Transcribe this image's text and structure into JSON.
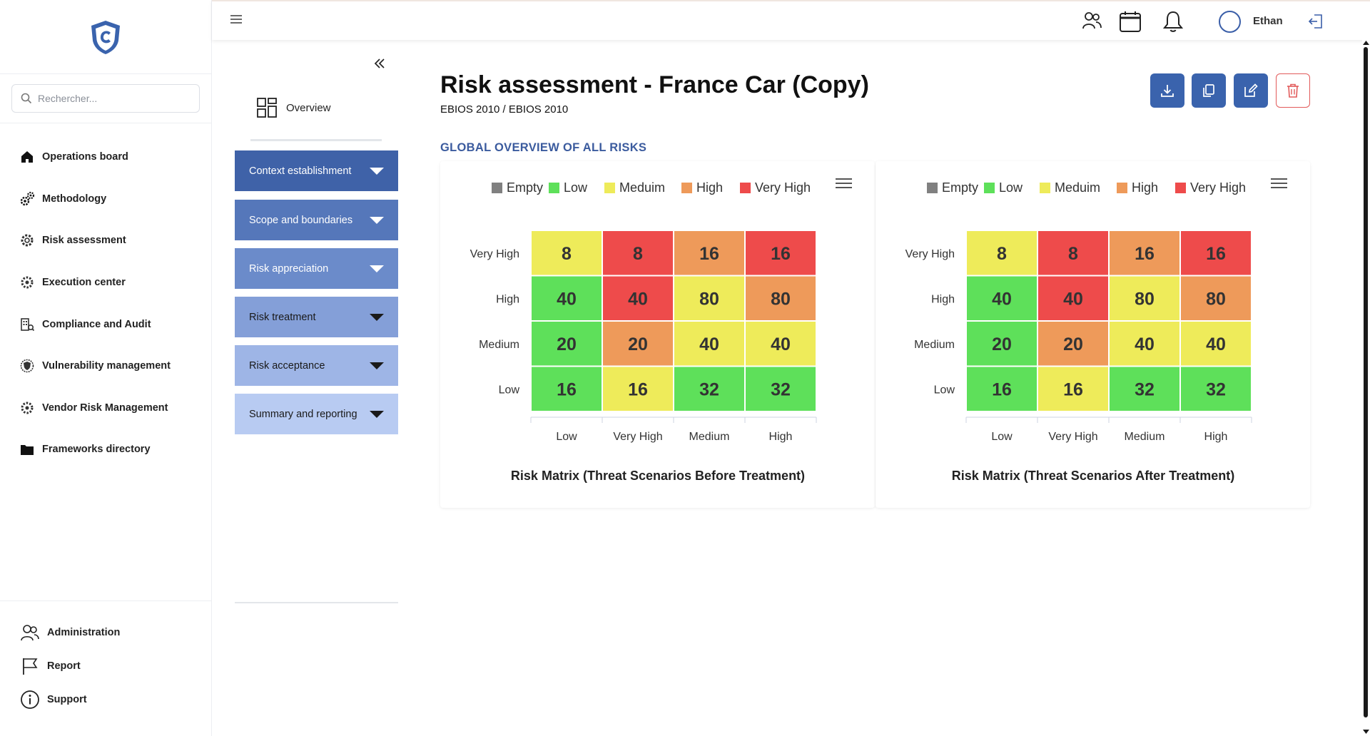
{
  "sidebar": {
    "search_placeholder": "Rechercher...",
    "items": [
      {
        "label": "Operations board",
        "icon": "home-icon"
      },
      {
        "label": "Methodology",
        "icon": "gears-icon"
      },
      {
        "label": "Risk assessment",
        "icon": "gear-icon"
      },
      {
        "label": "Execution center",
        "icon": "cog-icon"
      },
      {
        "label": "Compliance and Audit",
        "icon": "building-icon"
      },
      {
        "label": "Vulnerability management",
        "icon": "shield-icon"
      },
      {
        "label": "Vendor Risk Management",
        "icon": "cog-icon"
      },
      {
        "label": "Frameworks directory",
        "icon": "folder-icon"
      }
    ],
    "bottom": [
      {
        "label": "Administration",
        "icon": "users-icon"
      },
      {
        "label": "Report",
        "icon": "flag-icon"
      },
      {
        "label": "Support",
        "icon": "info-icon"
      }
    ]
  },
  "header": {
    "user_name": "Ethan"
  },
  "submenu": {
    "overview_label": "Overview",
    "sections": [
      {
        "label": "Context establishment",
        "color": "#3f62a8"
      },
      {
        "label": "Scope and boundaries",
        "color": "#5577ba"
      },
      {
        "label": "Risk appreciation",
        "color": "#6b8bca"
      },
      {
        "label": "Risk treatment",
        "color": "#849fd8"
      },
      {
        "label": "Risk acceptance",
        "color": "#9eb5e6"
      },
      {
        "label": "Summary and reporting",
        "color": "#b8cbf2"
      }
    ]
  },
  "main": {
    "title": "Risk assessment - France Car (Copy)",
    "subtitle": "EBIOS 2010 / EBIOS 2010",
    "section_title": "GLOBAL OVERVIEW OF ALL RISKS"
  },
  "colors": {
    "empty": "#808080",
    "low": "#5ee05a",
    "medium": "#eeeb5a",
    "high": "#ee9a5a",
    "very_high": "#ee4b4b"
  },
  "chart_data": [
    {
      "type": "heatmap",
      "title": "Risk Matrix (Threat Scenarios Before Treatment)",
      "legend": [
        "Empty",
        "Low",
        "Meduim",
        "High",
        "Very High"
      ],
      "legend_position": "top",
      "y_categories": [
        "Very High",
        "High",
        "Medium",
        "Low"
      ],
      "x_categories": [
        "Low",
        "Very High",
        "Medium",
        "High"
      ],
      "values": [
        [
          8,
          8,
          16,
          16
        ],
        [
          40,
          40,
          80,
          80
        ],
        [
          20,
          20,
          40,
          40
        ],
        [
          16,
          16,
          32,
          32
        ]
      ],
      "levels": [
        [
          "medium",
          "very_high",
          "high",
          "very_high"
        ],
        [
          "low",
          "very_high",
          "medium",
          "high"
        ],
        [
          "low",
          "high",
          "medium",
          "medium"
        ],
        [
          "low",
          "medium",
          "low",
          "low"
        ]
      ]
    },
    {
      "type": "heatmap",
      "title": "Risk Matrix (Threat Scenarios After Treatment)",
      "legend": [
        "Empty",
        "Low",
        "Meduim",
        "High",
        "Very High"
      ],
      "legend_position": "top",
      "y_categories": [
        "Very High",
        "High",
        "Medium",
        "Low"
      ],
      "x_categories": [
        "Low",
        "Very High",
        "Medium",
        "High"
      ],
      "values": [
        [
          8,
          8,
          16,
          16
        ],
        [
          40,
          40,
          80,
          80
        ],
        [
          20,
          20,
          40,
          40
        ],
        [
          16,
          16,
          32,
          32
        ]
      ],
      "levels": [
        [
          "medium",
          "very_high",
          "high",
          "very_high"
        ],
        [
          "low",
          "very_high",
          "medium",
          "high"
        ],
        [
          "low",
          "high",
          "medium",
          "medium"
        ],
        [
          "low",
          "medium",
          "low",
          "low"
        ]
      ]
    }
  ]
}
